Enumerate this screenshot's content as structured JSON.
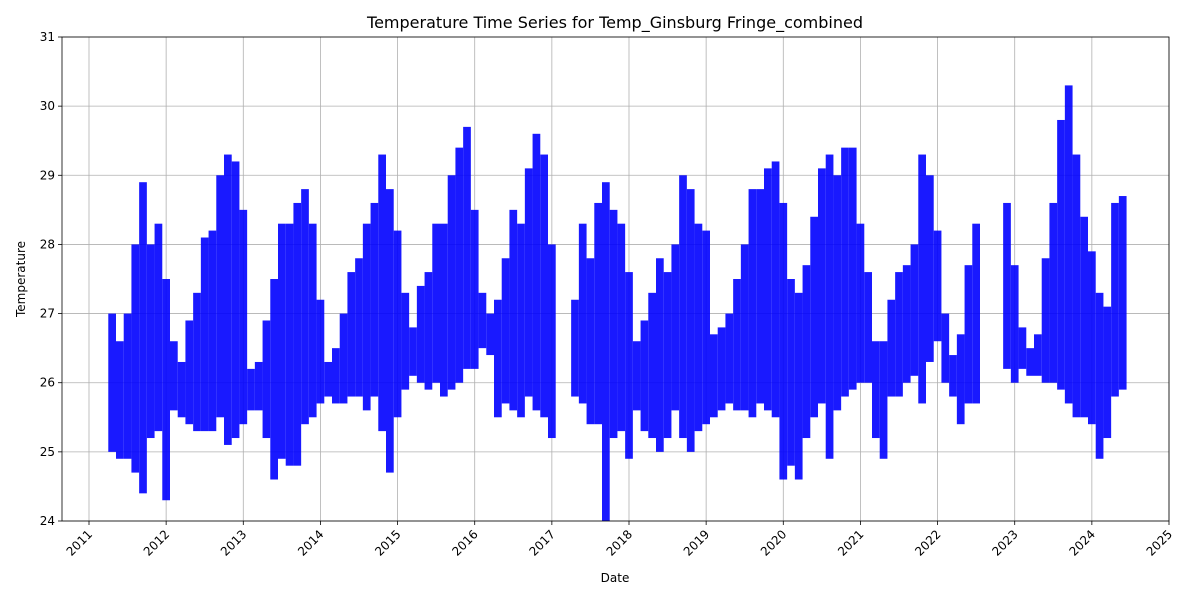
{
  "chart_data": {
    "type": "range",
    "title": "Temperature Time Series for Temp_Ginsburg Fringe_combined",
    "xlabel": "Date",
    "ylabel": "Temperature",
    "color": "#0000ff",
    "grid": true,
    "xlim": [
      2010.65,
      2025.0
    ],
    "xticks": [
      2011,
      2012,
      2013,
      2014,
      2015,
      2016,
      2017,
      2018,
      2019,
      2020,
      2021,
      2022,
      2023,
      2024,
      2025
    ],
    "ylim": [
      24,
      31
    ],
    "yticks": [
      24,
      25,
      26,
      27,
      28,
      29,
      30,
      31
    ],
    "x": [
      2011.3,
      2011.4,
      2011.5,
      2011.6,
      2011.7,
      2011.8,
      2011.9,
      2012.0,
      2012.1,
      2012.2,
      2012.3,
      2012.4,
      2012.5,
      2012.6,
      2012.7,
      2012.8,
      2012.9,
      2013.0,
      2013.1,
      2013.2,
      2013.3,
      2013.4,
      2013.5,
      2013.6,
      2013.7,
      2013.8,
      2013.9,
      2014.0,
      2014.1,
      2014.2,
      2014.3,
      2014.4,
      2014.5,
      2014.6,
      2014.7,
      2014.8,
      2014.9,
      2015.0,
      2015.1,
      2015.2,
      2015.3,
      2015.4,
      2015.5,
      2015.6,
      2015.7,
      2015.8,
      2015.9,
      2016.0,
      2016.1,
      2016.2,
      2016.3,
      2016.4,
      2016.5,
      2016.6,
      2016.7,
      2016.8,
      2016.9,
      2017.0,
      2017.3,
      2017.4,
      2017.5,
      2017.6,
      2017.7,
      2017.8,
      2017.9,
      2018.0,
      2018.1,
      2018.2,
      2018.3,
      2018.4,
      2018.5,
      2018.6,
      2018.7,
      2018.8,
      2018.9,
      2019.0,
      2019.1,
      2019.2,
      2019.3,
      2019.4,
      2019.5,
      2019.6,
      2019.7,
      2019.8,
      2019.9,
      2020.0,
      2020.1,
      2020.2,
      2020.3,
      2020.4,
      2020.5,
      2020.6,
      2020.7,
      2020.8,
      2020.9,
      2021.0,
      2021.1,
      2021.2,
      2021.3,
      2021.4,
      2021.5,
      2021.6,
      2021.7,
      2021.8,
      2021.9,
      2022.0,
      2022.1,
      2022.2,
      2022.3,
      2022.4,
      2022.5,
      2022.9,
      2023.0,
      2023.1,
      2023.2,
      2023.3,
      2023.4,
      2023.5,
      2023.6,
      2023.7,
      2023.8,
      2023.9,
      2024.0,
      2024.1,
      2024.2,
      2024.3,
      2024.4
    ],
    "low": [
      25.0,
      24.9,
      24.9,
      24.7,
      24.4,
      25.2,
      25.3,
      24.3,
      25.6,
      25.5,
      25.4,
      25.3,
      25.3,
      25.3,
      25.5,
      25.1,
      25.2,
      25.4,
      25.6,
      25.6,
      25.2,
      24.6,
      24.9,
      24.8,
      24.8,
      25.4,
      25.5,
      25.7,
      25.8,
      25.7,
      25.7,
      25.8,
      25.8,
      25.6,
      25.8,
      25.3,
      24.7,
      25.5,
      25.9,
      26.1,
      26.0,
      25.9,
      26.0,
      25.8,
      25.9,
      26.0,
      26.2,
      26.2,
      26.5,
      26.4,
      25.5,
      25.7,
      25.6,
      25.5,
      25.8,
      25.6,
      25.5,
      25.2,
      25.8,
      25.7,
      25.4,
      25.4,
      24.0,
      25.2,
      25.3,
      24.9,
      25.6,
      25.3,
      25.2,
      25.0,
      25.2,
      25.6,
      25.2,
      25.0,
      25.3,
      25.4,
      25.5,
      25.6,
      25.7,
      25.6,
      25.6,
      25.5,
      25.7,
      25.6,
      25.5,
      24.6,
      24.8,
      24.6,
      25.2,
      25.5,
      25.7,
      24.9,
      25.6,
      25.8,
      25.9,
      26.0,
      26.0,
      25.2,
      24.9,
      25.8,
      25.8,
      26.0,
      26.1,
      25.7,
      26.3,
      26.6,
      26.0,
      25.8,
      25.4,
      25.7,
      25.7,
      26.2,
      26.0,
      26.2,
      26.1,
      26.1,
      26.0,
      26.0,
      25.9,
      25.7,
      25.5,
      25.5,
      25.4,
      24.9,
      25.2,
      25.8,
      25.9
    ],
    "high": [
      27.0,
      26.6,
      27.0,
      28.0,
      28.9,
      28.0,
      28.3,
      27.5,
      26.6,
      26.3,
      26.9,
      27.3,
      28.1,
      28.2,
      29.0,
      29.3,
      29.2,
      28.5,
      26.2,
      26.3,
      26.9,
      27.5,
      28.3,
      28.3,
      28.6,
      28.8,
      28.3,
      27.2,
      26.3,
      26.5,
      27.0,
      27.6,
      27.8,
      28.3,
      28.6,
      29.3,
      28.8,
      28.2,
      27.3,
      26.8,
      27.4,
      27.6,
      28.3,
      28.3,
      29.0,
      29.4,
      29.7,
      28.5,
      27.3,
      27.0,
      27.2,
      27.8,
      28.5,
      28.3,
      29.1,
      29.6,
      29.3,
      28.0,
      27.2,
      28.3,
      27.8,
      28.6,
      28.9,
      28.5,
      28.3,
      27.6,
      26.6,
      26.9,
      27.3,
      27.8,
      27.6,
      28.0,
      29.0,
      28.8,
      28.3,
      28.2,
      26.7,
      26.8,
      27.0,
      27.5,
      28.0,
      28.8,
      28.8,
      29.1,
      29.2,
      28.6,
      27.5,
      27.3,
      27.7,
      28.4,
      29.1,
      29.3,
      29.0,
      29.4,
      29.4,
      28.3,
      27.6,
      26.6,
      26.6,
      27.2,
      27.6,
      27.7,
      28.0,
      29.3,
      29.0,
      28.2,
      27.0,
      26.4,
      26.7,
      27.7,
      28.3,
      28.6,
      27.7,
      26.8,
      26.5,
      26.7,
      27.8,
      28.6,
      29.8,
      30.3,
      29.3,
      28.4,
      27.9,
      27.3,
      27.1,
      28.6,
      28.7
    ]
  }
}
